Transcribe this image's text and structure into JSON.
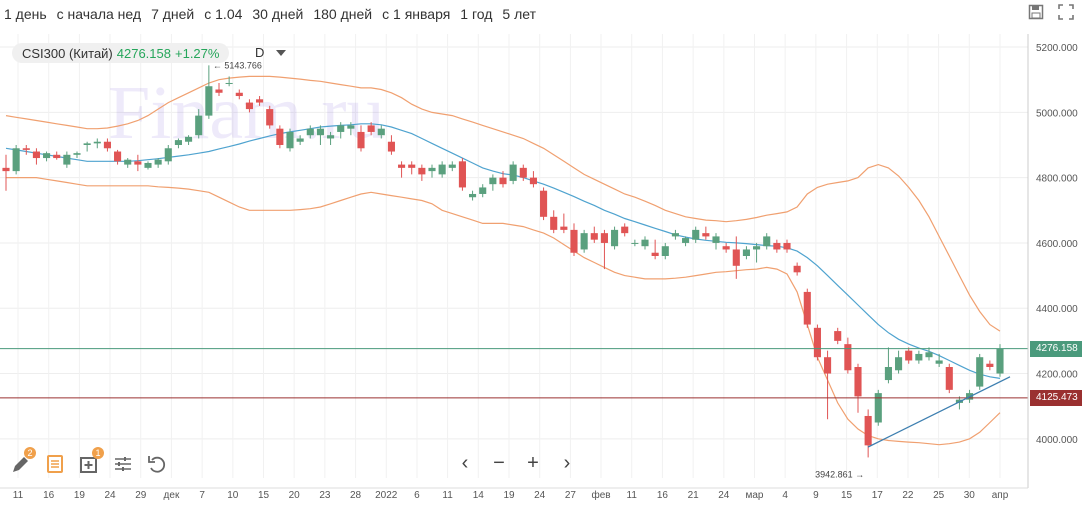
{
  "periods": [
    "1 день",
    "с начала нед",
    "7 дней",
    "с 1.04",
    "30 дней",
    "180 дней",
    "с 1 января",
    "1 год",
    "5 лет"
  ],
  "legend": {
    "symbol": "CSI300 (Китай)",
    "price": "4276.158",
    "change": "+1.27%"
  },
  "interval": "D",
  "watermark": "Finam.ru",
  "colors": {
    "up": "#5aa07e",
    "down": "#e05454",
    "ma": "#4fa3cf",
    "band": "#f0a070",
    "last_line": "#4a9a7c",
    "level_line": "#9a3030"
  },
  "tool_badges": {
    "draw": "2",
    "indicators": "1"
  },
  "nav": {
    "prev": "‹",
    "zoom_out": "−",
    "zoom_in": "+",
    "next": "›"
  },
  "chart_data": {
    "type": "candlestick",
    "y_ticks": [
      "5200.000",
      "5000.000",
      "4800.000",
      "4600.000",
      "4400.000",
      "4200.000",
      "4000.000"
    ],
    "ylim": [
      3880,
      5240
    ],
    "x_ticks": [
      "11",
      "16",
      "19",
      "24",
      "29",
      "дек",
      "7",
      "10",
      "15",
      "20",
      "23",
      "28",
      "2022",
      "6",
      "11",
      "14",
      "19",
      "24",
      "27",
      "фев",
      "11",
      "16",
      "21",
      "24",
      "мар",
      "4",
      "9",
      "15",
      "17",
      "22",
      "25",
      "30",
      "апр"
    ],
    "annotations": {
      "high": "5143.766",
      "low": "3942.861"
    },
    "last_price": "4276.158",
    "level_price": "4125.473",
    "candles": [
      {
        "o": 4830,
        "h": 4870,
        "l": 4760,
        "c": 4820
      },
      {
        "o": 4820,
        "h": 4900,
        "l": 4810,
        "c": 4890
      },
      {
        "o": 4890,
        "h": 4900,
        "l": 4870,
        "c": 4885
      },
      {
        "o": 4880,
        "h": 4890,
        "l": 4840,
        "c": 4860
      },
      {
        "o": 4860,
        "h": 4880,
        "l": 4850,
        "c": 4875
      },
      {
        "o": 4870,
        "h": 4880,
        "l": 4855,
        "c": 4860
      },
      {
        "o": 4840,
        "h": 4880,
        "l": 4830,
        "c": 4870
      },
      {
        "o": 4870,
        "h": 4880,
        "l": 4860,
        "c": 4875
      },
      {
        "o": 4900,
        "h": 4910,
        "l": 4880,
        "c": 4905
      },
      {
        "o": 4905,
        "h": 4920,
        "l": 4890,
        "c": 4910
      },
      {
        "o": 4910,
        "h": 4920,
        "l": 4880,
        "c": 4890
      },
      {
        "o": 4880,
        "h": 4885,
        "l": 4840,
        "c": 4850
      },
      {
        "o": 4840,
        "h": 4860,
        "l": 4830,
        "c": 4855
      },
      {
        "o": 4850,
        "h": 4870,
        "l": 4820,
        "c": 4840
      },
      {
        "o": 4830,
        "h": 4850,
        "l": 4825,
        "c": 4845
      },
      {
        "o": 4840,
        "h": 4860,
        "l": 4830,
        "c": 4855
      },
      {
        "o": 4850,
        "h": 4900,
        "l": 4840,
        "c": 4890
      },
      {
        "o": 4900,
        "h": 4920,
        "l": 4890,
        "c": 4915
      },
      {
        "o": 4910,
        "h": 4930,
        "l": 4900,
        "c": 4925
      },
      {
        "o": 4930,
        "h": 5010,
        "l": 4920,
        "c": 4990
      },
      {
        "o": 4990,
        "h": 5144,
        "l": 4980,
        "c": 5080
      },
      {
        "o": 5070,
        "h": 5090,
        "l": 5050,
        "c": 5060
      },
      {
        "o": 5090,
        "h": 5110,
        "l": 5080,
        "c": 5090
      },
      {
        "o": 5060,
        "h": 5070,
        "l": 5040,
        "c": 5050
      },
      {
        "o": 5030,
        "h": 5040,
        "l": 5000,
        "c": 5010
      },
      {
        "o": 5040,
        "h": 5050,
        "l": 5020,
        "c": 5030
      },
      {
        "o": 5010,
        "h": 5020,
        "l": 4950,
        "c": 4960
      },
      {
        "o": 4950,
        "h": 4960,
        "l": 4890,
        "c": 4900
      },
      {
        "o": 4890,
        "h": 4950,
        "l": 4880,
        "c": 4940
      },
      {
        "o": 4910,
        "h": 4930,
        "l": 4900,
        "c": 4920
      },
      {
        "o": 4930,
        "h": 4960,
        "l": 4920,
        "c": 4950
      },
      {
        "o": 4930,
        "h": 4960,
        "l": 4900,
        "c": 4950
      },
      {
        "o": 4920,
        "h": 4940,
        "l": 4900,
        "c": 4930
      },
      {
        "o": 4940,
        "h": 4970,
        "l": 4920,
        "c": 4960
      },
      {
        "o": 4950,
        "h": 4970,
        "l": 4930,
        "c": 4960
      },
      {
        "o": 4940,
        "h": 4960,
        "l": 4880,
        "c": 4890
      },
      {
        "o": 4960,
        "h": 4970,
        "l": 4930,
        "c": 4940
      },
      {
        "o": 4930,
        "h": 4960,
        "l": 4920,
        "c": 4950
      },
      {
        "o": 4910,
        "h": 4930,
        "l": 4870,
        "c": 4880
      },
      {
        "o": 4840,
        "h": 4850,
        "l": 4800,
        "c": 4830
      },
      {
        "o": 4840,
        "h": 4850,
        "l": 4810,
        "c": 4830
      },
      {
        "o": 4830,
        "h": 4840,
        "l": 4790,
        "c": 4810
      },
      {
        "o": 4820,
        "h": 4840,
        "l": 4800,
        "c": 4830
      },
      {
        "o": 4810,
        "h": 4850,
        "l": 4800,
        "c": 4840
      },
      {
        "o": 4830,
        "h": 4850,
        "l": 4820,
        "c": 4840
      },
      {
        "o": 4850,
        "h": 4860,
        "l": 4760,
        "c": 4770
      },
      {
        "o": 4740,
        "h": 4760,
        "l": 4730,
        "c": 4750
      },
      {
        "o": 4750,
        "h": 4780,
        "l": 4740,
        "c": 4770
      },
      {
        "o": 4780,
        "h": 4810,
        "l": 4760,
        "c": 4800
      },
      {
        "o": 4800,
        "h": 4820,
        "l": 4770,
        "c": 4780
      },
      {
        "o": 4790,
        "h": 4850,
        "l": 4780,
        "c": 4840
      },
      {
        "o": 4830,
        "h": 4840,
        "l": 4790,
        "c": 4800
      },
      {
        "o": 4800,
        "h": 4820,
        "l": 4770,
        "c": 4780
      },
      {
        "o": 4760,
        "h": 4770,
        "l": 4670,
        "c": 4680
      },
      {
        "o": 4680,
        "h": 4700,
        "l": 4630,
        "c": 4640
      },
      {
        "o": 4650,
        "h": 4690,
        "l": 4630,
        "c": 4640
      },
      {
        "o": 4640,
        "h": 4660,
        "l": 4560,
        "c": 4570
      },
      {
        "o": 4580,
        "h": 4640,
        "l": 4570,
        "c": 4630
      },
      {
        "o": 4630,
        "h": 4650,
        "l": 4600,
        "c": 4610
      },
      {
        "o": 4630,
        "h": 4640,
        "l": 4520,
        "c": 4600
      },
      {
        "o": 4590,
        "h": 4650,
        "l": 4580,
        "c": 4640
      },
      {
        "o": 4650,
        "h": 4660,
        "l": 4620,
        "c": 4630
      },
      {
        "o": 4600,
        "h": 4610,
        "l": 4590,
        "c": 4600
      },
      {
        "o": 4590,
        "h": 4620,
        "l": 4580,
        "c": 4610
      },
      {
        "o": 4570,
        "h": 4610,
        "l": 4550,
        "c": 4560
      },
      {
        "o": 4560,
        "h": 4600,
        "l": 4550,
        "c": 4590
      },
      {
        "o": 4620,
        "h": 4640,
        "l": 4610,
        "c": 4630
      },
      {
        "o": 4600,
        "h": 4620,
        "l": 4590,
        "c": 4615
      },
      {
        "o": 4610,
        "h": 4650,
        "l": 4600,
        "c": 4640
      },
      {
        "o": 4630,
        "h": 4650,
        "l": 4610,
        "c": 4620
      },
      {
        "o": 4600,
        "h": 4630,
        "l": 4580,
        "c": 4620
      },
      {
        "o": 4590,
        "h": 4600,
        "l": 4570,
        "c": 4580
      },
      {
        "o": 4580,
        "h": 4620,
        "l": 4490,
        "c": 4530
      },
      {
        "o": 4560,
        "h": 4590,
        "l": 4550,
        "c": 4580
      },
      {
        "o": 4580,
        "h": 4600,
        "l": 4540,
        "c": 4590
      },
      {
        "o": 4590,
        "h": 4630,
        "l": 4580,
        "c": 4620
      },
      {
        "o": 4600,
        "h": 4610,
        "l": 4570,
        "c": 4580
      },
      {
        "o": 4600,
        "h": 4610,
        "l": 4570,
        "c": 4580
      },
      {
        "o": 4530,
        "h": 4540,
        "l": 4500,
        "c": 4510
      },
      {
        "o": 4450,
        "h": 4460,
        "l": 4340,
        "c": 4350
      },
      {
        "o": 4340,
        "h": 4350,
        "l": 4240,
        "c": 4250
      },
      {
        "o": 4250,
        "h": 4270,
        "l": 4060,
        "c": 4200
      },
      {
        "o": 4330,
        "h": 4340,
        "l": 4290,
        "c": 4300
      },
      {
        "o": 4290,
        "h": 4310,
        "l": 4200,
        "c": 4210
      },
      {
        "o": 4220,
        "h": 4230,
        "l": 4080,
        "c": 4130
      },
      {
        "o": 4070,
        "h": 4090,
        "l": 3943,
        "c": 3980
      },
      {
        "o": 4050,
        "h": 4150,
        "l": 4040,
        "c": 4140
      },
      {
        "o": 4180,
        "h": 4280,
        "l": 4170,
        "c": 4220
      },
      {
        "o": 4210,
        "h": 4270,
        "l": 4200,
        "c": 4250
      },
      {
        "o": 4270,
        "h": 4280,
        "l": 4230,
        "c": 4240
      },
      {
        "o": 4240,
        "h": 4270,
        "l": 4230,
        "c": 4260
      },
      {
        "o": 4250,
        "h": 4280,
        "l": 4240,
        "c": 4265
      },
      {
        "o": 4230,
        "h": 4260,
        "l": 4220,
        "c": 4240
      },
      {
        "o": 4220,
        "h": 4230,
        "l": 4140,
        "c": 4150
      },
      {
        "o": 4110,
        "h": 4130,
        "l": 4090,
        "c": 4120
      },
      {
        "o": 4120,
        "h": 4150,
        "l": 4110,
        "c": 4140
      },
      {
        "o": 4160,
        "h": 4260,
        "l": 4150,
        "c": 4250
      },
      {
        "o": 4230,
        "h": 4240,
        "l": 4210,
        "c": 4220
      },
      {
        "o": 4200,
        "h": 4290,
        "l": 4190,
        "c": 4276
      }
    ],
    "ma": [
      4890,
      4885,
      4880,
      4875,
      4870,
      4865,
      4860,
      4855,
      4850,
      4850,
      4850,
      4850,
      4850,
      4852,
      4855,
      4858,
      4862,
      4866,
      4870,
      4875,
      4880,
      4888,
      4895,
      4903,
      4912,
      4920,
      4928,
      4935,
      4940,
      4945,
      4950,
      4955,
      4958,
      4960,
      4962,
      4965,
      4965,
      4962,
      4955,
      4945,
      4935,
      4920,
      4905,
      4890,
      4875,
      4860,
      4845,
      4830,
      4820,
      4812,
      4808,
      4800,
      4790,
      4780,
      4768,
      4755,
      4742,
      4728,
      4715,
      4700,
      4688,
      4675,
      4665,
      4655,
      4645,
      4635,
      4625,
      4618,
      4612,
      4608,
      4605,
      4602,
      4600,
      4598,
      4595,
      4592,
      4590,
      4585,
      4575,
      4555,
      4530,
      4500,
      4470,
      4440,
      4410,
      4380,
      4350,
      4325,
      4305,
      4290,
      4278,
      4268,
      4255,
      4240,
      4225,
      4210,
      4198,
      4190,
      4185
    ],
    "upper": [
      4990,
      4985,
      4980,
      4975,
      4970,
      4965,
      4960,
      4955,
      4950,
      4950,
      4952,
      4958,
      4965,
      4975,
      4990,
      5010,
      5030,
      5045,
      5060,
      5075,
      5090,
      5100,
      5105,
      5108,
      5110,
      5110,
      5110,
      5108,
      5105,
      5102,
      5098,
      5095,
      5090,
      5085,
      5080,
      5075,
      5075,
      5070,
      5060,
      5045,
      5025,
      5010,
      5000,
      4995,
      4990,
      4980,
      4970,
      4960,
      4950,
      4940,
      4930,
      4920,
      4905,
      4890,
      4870,
      4850,
      4830,
      4810,
      4795,
      4780,
      4765,
      4750,
      4740,
      4728,
      4715,
      4700,
      4690,
      4680,
      4675,
      4670,
      4668,
      4665,
      4668,
      4672,
      4678,
      4685,
      4690,
      4695,
      4710,
      4750,
      4770,
      4780,
      4785,
      4790,
      4800,
      4830,
      4840,
      4830,
      4805,
      4770,
      4730,
      4680,
      4620,
      4560,
      4500,
      4440,
      4390,
      4350,
      4330
    ],
    "lower": [
      4800,
      4800,
      4800,
      4800,
      4795,
      4790,
      4785,
      4780,
      4775,
      4775,
      4775,
      4775,
      4775,
      4775,
      4775,
      4772,
      4770,
      4768,
      4765,
      4760,
      4755,
      4740,
      4725,
      4710,
      4700,
      4700,
      4700,
      4700,
      4700,
      4702,
      4705,
      4710,
      4720,
      4730,
      4740,
      4750,
      4755,
      4750,
      4745,
      4740,
      4735,
      4730,
      4720,
      4700,
      4690,
      4680,
      4670,
      4660,
      4660,
      4660,
      4655,
      4650,
      4640,
      4630,
      4615,
      4595,
      4575,
      4555,
      4540,
      4525,
      4510,
      4500,
      4495,
      4490,
      4490,
      4490,
      4492,
      4495,
      4500,
      4505,
      4510,
      4512,
      4515,
      4518,
      4520,
      4525,
      4520,
      4505,
      4450,
      4350,
      4250,
      4180,
      4110,
      4060,
      4030,
      4010,
      4000,
      3995,
      3992,
      3990,
      3988,
      3985,
      3982,
      3985,
      3990,
      4000,
      4020,
      4050,
      4080
    ]
  }
}
